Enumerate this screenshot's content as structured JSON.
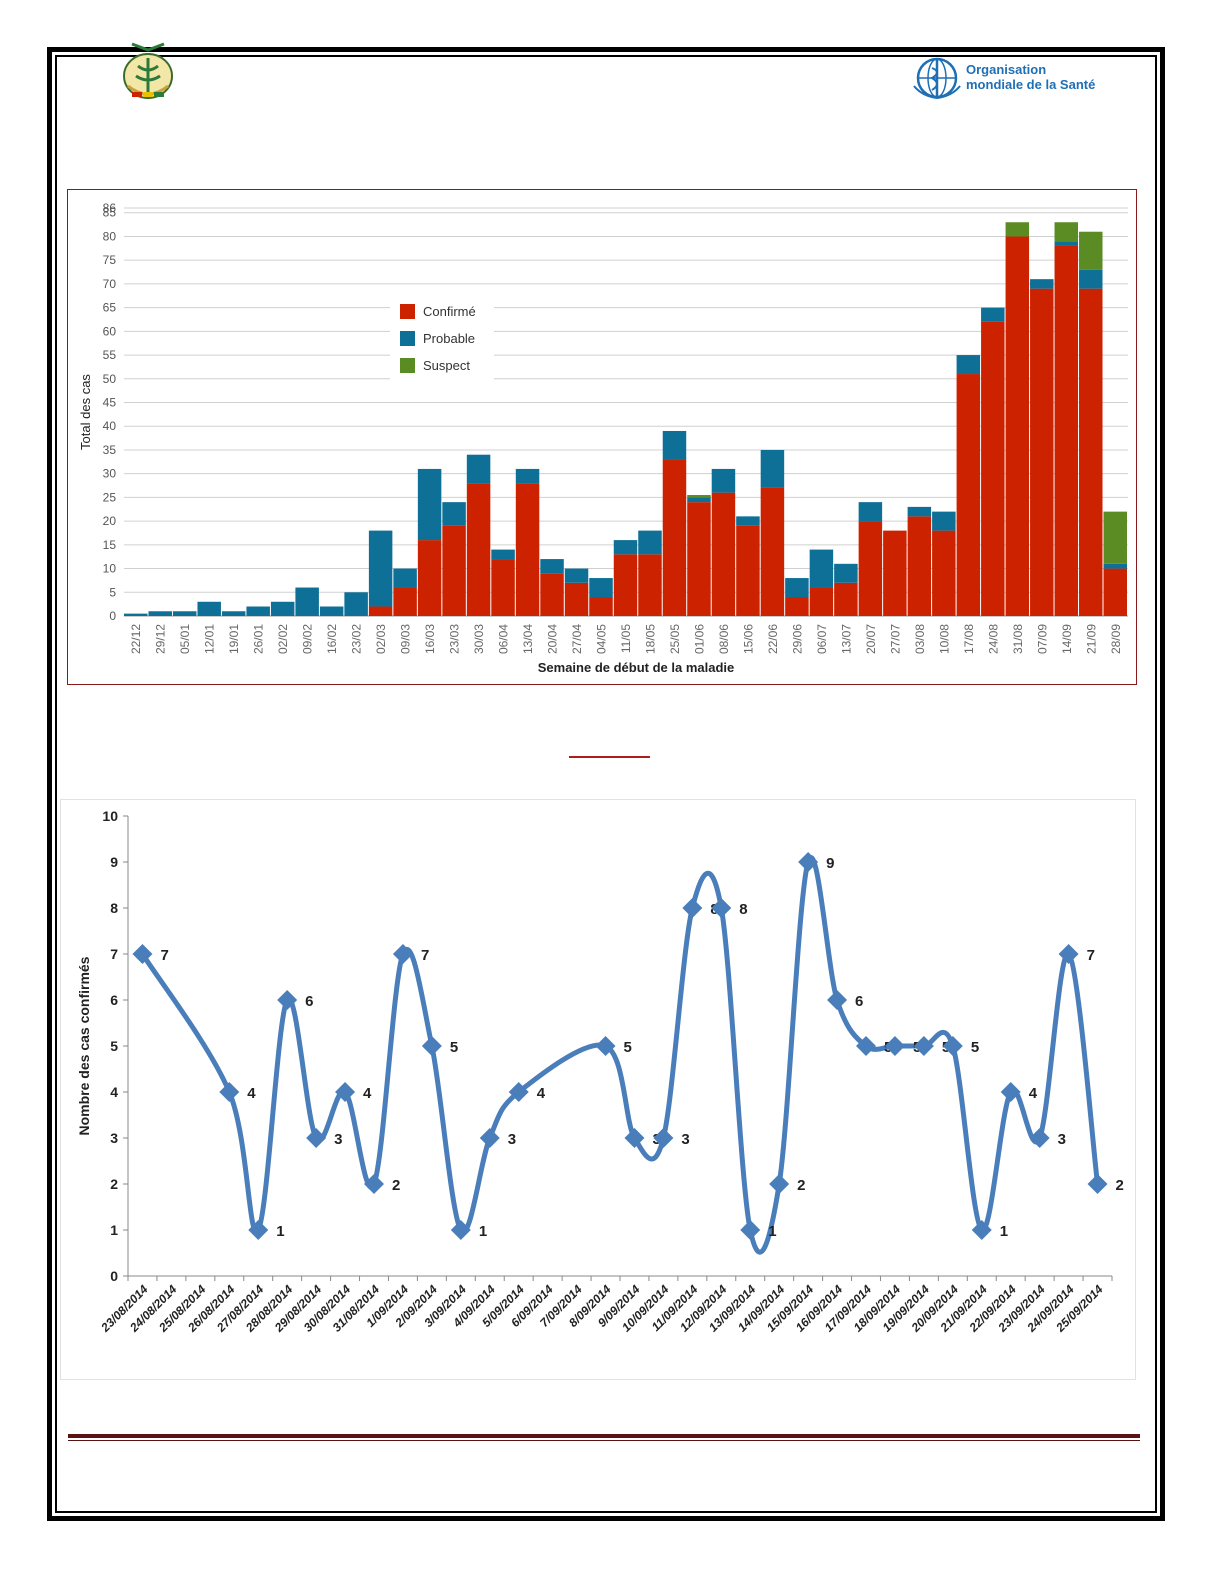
{
  "header": {
    "who_name_line1": "Organisation",
    "who_name_line2": "mondiale de la Santé",
    "colors": {
      "who_blue": "#1f6fb5",
      "frame": "#000000"
    },
    "emblem_icon": "guinea-coat-of-arms-icon",
    "who_logo_icon": "who-emblem-icon"
  },
  "chart1": {
    "chart_data": {
      "type": "bar",
      "stacked": true,
      "xlabel": "Semaine de début de la maladie",
      "ylabel": "Total des cas",
      "ylim": [
        0,
        86
      ],
      "yticks": [
        0,
        5,
        10,
        15,
        20,
        25,
        30,
        35,
        40,
        45,
        50,
        55,
        60,
        65,
        70,
        75,
        80,
        85,
        86
      ],
      "grid": true,
      "legend_position": "upper-left-center",
      "categories": [
        "22/12",
        "29/12",
        "05/01",
        "12/01",
        "19/01",
        "26/01",
        "02/02",
        "09/02",
        "16/02",
        "23/02",
        "02/03",
        "09/03",
        "16/03",
        "23/03",
        "30/03",
        "06/04",
        "13/04",
        "20/04",
        "27/04",
        "04/05",
        "11/05",
        "18/05",
        "25/05",
        "01/06",
        "08/06",
        "15/06",
        "22/06",
        "29/06",
        "06/07",
        "13/07",
        "20/07",
        "27/07",
        "03/08",
        "10/08",
        "17/08",
        "24/08",
        "31/08",
        "07/09",
        "14/09",
        "21/09",
        "28/09"
      ],
      "series": [
        {
          "name": "Confirmé",
          "color": "#cc2200",
          "values": [
            0,
            0,
            0,
            0,
            0,
            0,
            0,
            0,
            0,
            0,
            2,
            6,
            16,
            19,
            28,
            12,
            28,
            9,
            7,
            4,
            13,
            13,
            33,
            24,
            26,
            19,
            27,
            4,
            6,
            7,
            20,
            18,
            21,
            18,
            51,
            62,
            80,
            69,
            78,
            69,
            10
          ]
        },
        {
          "name": "Probable",
          "color": "#0e6f97",
          "values": [
            0.5,
            1,
            1,
            3,
            1,
            2,
            3,
            6,
            2,
            5,
            16,
            4,
            15,
            5,
            6,
            2,
            3,
            3,
            3,
            4,
            3,
            5,
            6,
            1,
            5,
            2,
            8,
            4,
            8,
            4,
            4,
            0,
            2,
            4,
            4,
            3,
            0,
            2,
            1,
            4,
            1
          ]
        },
        {
          "name": "Suspect",
          "color": "#5b8c23",
          "values": [
            0,
            0,
            0,
            0,
            0,
            0,
            0,
            0,
            0,
            0,
            0,
            0,
            0,
            0,
            0,
            0,
            0,
            0,
            0,
            0,
            0,
            0,
            0,
            0.5,
            0,
            0,
            0,
            0,
            0,
            0,
            0,
            0,
            0,
            0,
            0,
            0,
            3,
            0,
            4,
            8,
            11
          ]
        }
      ]
    }
  },
  "chart2": {
    "chart_data": {
      "type": "line",
      "smooth": true,
      "marker": "diamond",
      "color": "#4a7ebb",
      "ylabel": "Nombre des cas confirmés",
      "ylim": [
        0,
        10
      ],
      "yticks": [
        0,
        1,
        2,
        3,
        4,
        5,
        6,
        7,
        8,
        9,
        10
      ],
      "categories": [
        "23/08/2014",
        "24/08/2014",
        "25/08/2014",
        "26/08/2014",
        "27/08/2014",
        "28/08/2014",
        "29/08/2014",
        "30/08/2014",
        "31/08/2014",
        "1/09/2014",
        "2/09/2014",
        "3/09/2014",
        "4/09/2014",
        "5/09/2014",
        "6/09/2014",
        "7/09/2014",
        "8/09/2014",
        "9/09/2014",
        "10/09/2014",
        "11/09/2014",
        "12/09/2014",
        "13/09/2014",
        "14/09/2014",
        "15/09/2014",
        "16/09/2014",
        "17/09/2014",
        "18/09/2014",
        "19/09/2014",
        "20/09/2014",
        "21/09/2014",
        "22/09/2014",
        "23/09/2014",
        "24/09/2014",
        "25/09/2014"
      ],
      "points": [
        {
          "x": 0,
          "y": 7
        },
        {
          "x": 3,
          "y": 4
        },
        {
          "x": 4,
          "y": 1
        },
        {
          "x": 5,
          "y": 6
        },
        {
          "x": 6,
          "y": 3
        },
        {
          "x": 7,
          "y": 4
        },
        {
          "x": 8,
          "y": 2
        },
        {
          "x": 9,
          "y": 7
        },
        {
          "x": 10,
          "y": 5
        },
        {
          "x": 11,
          "y": 1
        },
        {
          "x": 12,
          "y": 3
        },
        {
          "x": 13,
          "y": 4
        },
        {
          "x": 16,
          "y": 5
        },
        {
          "x": 17,
          "y": 3
        },
        {
          "x": 18,
          "y": 3
        },
        {
          "x": 19,
          "y": 8
        },
        {
          "x": 20,
          "y": 8
        },
        {
          "x": 21,
          "y": 1
        },
        {
          "x": 22,
          "y": 2
        },
        {
          "x": 23,
          "y": 9
        },
        {
          "x": 24,
          "y": 6
        },
        {
          "x": 25,
          "y": 5
        },
        {
          "x": 26,
          "y": 5
        },
        {
          "x": 27,
          "y": 5
        },
        {
          "x": 28,
          "y": 5
        },
        {
          "x": 29,
          "y": 1
        },
        {
          "x": 30,
          "y": 4
        },
        {
          "x": 31,
          "y": 3
        },
        {
          "x": 32,
          "y": 7
        },
        {
          "x": 33,
          "y": 2
        }
      ]
    }
  }
}
